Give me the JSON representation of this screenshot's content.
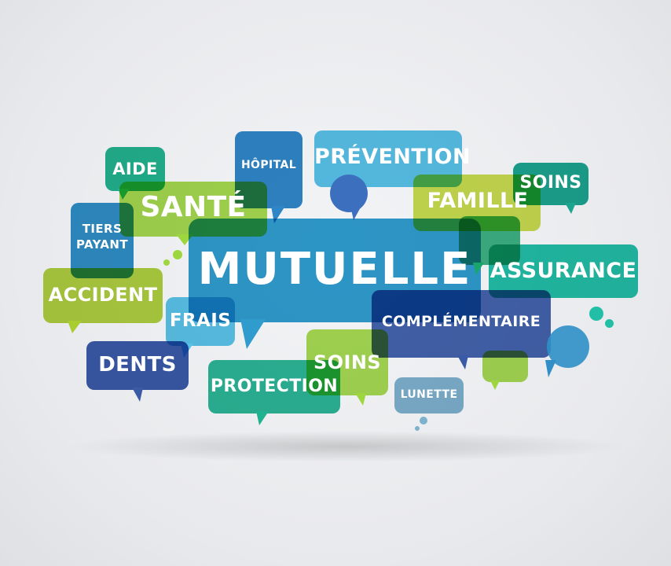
{
  "words": {
    "mutuelle": "MUTUELLE",
    "sante": "SANTÉ",
    "aide": "AIDE",
    "hopital": "HÔPITAL",
    "prevention": "PRÉVENTION",
    "famille": "FAMILLE",
    "soins_top": "SOINS",
    "tiers_payant_line1": "TIERS",
    "tiers_payant_line2": "PAYANT",
    "accident": "ACCIDENT",
    "assurance": "ASSURANCE",
    "frais": "FRAIS",
    "complementaire": "COMPLÉMENTAIRE",
    "dents": "DENTS",
    "protection": "PROTECTION",
    "soins_bottom": "SOINS",
    "lunette": "LUNETTE"
  },
  "colors": {
    "blue_main": "#2f9ccd",
    "light_blue": "#5bc0e6",
    "dark_blue": "#3b63ad",
    "mid_blue": "#2e7fc2",
    "green": "#2fb07a",
    "teal": "#22b3a2",
    "lime": "#a9cc2e",
    "light_lime": "#c3d83a",
    "navy": "#3a5aa8",
    "grey_blue": "#7eb1cc"
  }
}
